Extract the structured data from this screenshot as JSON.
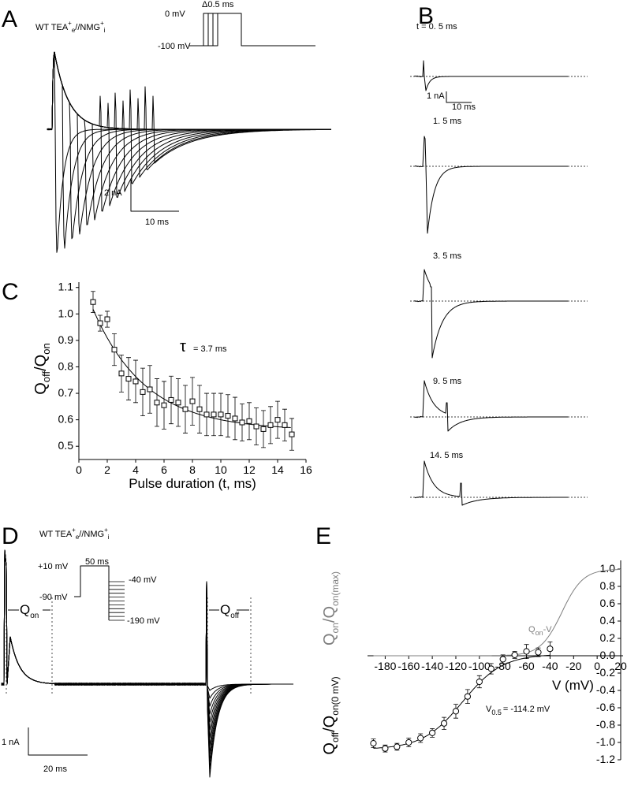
{
  "figure": {
    "panels": {
      "A": {
        "letter": "A",
        "title_main": "WT TEA",
        "title_sup1": "+",
        "title_sub1": "e",
        "title_mid": "//NMG",
        "title_sup2": "+",
        "title_sub2": "i",
        "protocol": {
          "step_label": "Δ0.5 ms",
          "high_label": "0 mV",
          "low_label": "-100 mV"
        },
        "scale_y": "2 nA",
        "scale_x": "10 ms"
      },
      "B": {
        "letter": "B",
        "trace_labels": [
          "t = 0. 5 ms",
          "1. 5 ms",
          "3. 5 ms",
          "9. 5 ms",
          "14. 5 ms"
        ],
        "scale_y": "1 nA",
        "scale_x": "10 ms"
      },
      "C": {
        "letter": "C",
        "ylabel_main": "Q",
        "ylabel_sub1": "off",
        "ylabel_mid": "/Q",
        "ylabel_sub2": "on",
        "xlabel": "Pulse duration (t, ms)",
        "tau_symbol": "τ",
        "tau_text": "= 3.7 ms"
      },
      "D": {
        "letter": "D",
        "title_main": "WT TEA",
        "title_sup1": "+",
        "title_sub1": "e",
        "title_mid": "//NMG",
        "title_sup2": "+",
        "title_sub2": "i",
        "protocol": {
          "duration": "50 ms",
          "prepulse": "+10 mV",
          "hold": "-90 mV",
          "top": "-40 mV",
          "bottom": "-190 mV"
        },
        "q_on_main": "Q",
        "q_on_sub": "on",
        "q_off_main": "Q",
        "q_off_sub": "off",
        "scale_y": "1 nA",
        "scale_x": "20 ms"
      },
      "E": {
        "letter": "E",
        "ylabel_top_main": "Q",
        "ylabel_top_sub1": "on",
        "ylabel_top_mid": "/Q",
        "ylabel_top_sub2": "on(max)",
        "ylabel_bot_main": "Q",
        "ylabel_bot_sub1": "off",
        "ylabel_bot_mid": "/Q",
        "ylabel_bot_sub2": "on(0 mV)",
        "xlabel": "V (mV)",
        "qon_label_main": "Q",
        "qon_label_sub": "on",
        "qon_label_suffix": "-V",
        "v05_main": "V",
        "v05_sub": "0.5",
        "v05_value": "= -114.2 mV"
      }
    }
  },
  "chart_data": [
    {
      "type": "scatter",
      "panel": "C",
      "x": [
        1,
        1.5,
        2,
        2.5,
        3,
        3.5,
        4,
        4.5,
        5,
        5.5,
        6,
        6.5,
        7,
        7.5,
        8,
        8.5,
        9,
        9.5,
        10,
        10.5,
        11,
        11.5,
        12,
        12.5,
        13,
        13.5,
        14,
        14.5,
        15
      ],
      "y": [
        1.045,
        0.965,
        0.98,
        0.865,
        0.775,
        0.755,
        0.745,
        0.705,
        0.715,
        0.665,
        0.655,
        0.675,
        0.665,
        0.64,
        0.67,
        0.64,
        0.62,
        0.62,
        0.62,
        0.615,
        0.605,
        0.59,
        0.595,
        0.575,
        0.565,
        0.58,
        0.6,
        0.58,
        0.545
      ],
      "err": [
        0.04,
        0.03,
        0.03,
        0.06,
        0.07,
        0.08,
        0.08,
        0.09,
        0.09,
        0.09,
        0.09,
        0.09,
        0.09,
        0.09,
        0.09,
        0.09,
        0.08,
        0.08,
        0.08,
        0.08,
        0.08,
        0.07,
        0.07,
        0.07,
        0.07,
        0.07,
        0.07,
        0.06,
        0.06
      ],
      "fit": {
        "model": "single exponential",
        "tau_ms": 3.7
      },
      "xlabel": "Pulse duration (t, ms)",
      "ylabel": "Qoff/Qon",
      "xlim": [
        0,
        16
      ],
      "ylim": [
        0.45,
        1.12
      ],
      "xticks": [
        0,
        2,
        4,
        6,
        8,
        10,
        12,
        14,
        16
      ],
      "yticks": [
        0.5,
        0.6,
        0.7,
        0.8,
        0.9,
        1.0,
        1.1
      ],
      "grid": false
    },
    {
      "type": "scatter",
      "panel": "E",
      "x": [
        -190,
        -180,
        -170,
        -160,
        -150,
        -140,
        -130,
        -120,
        -110,
        -100,
        -90,
        -80,
        -70,
        -60,
        -50,
        -40
      ],
      "y": [
        -1.01,
        -1.07,
        -1.05,
        -1.0,
        -0.95,
        -0.89,
        -0.78,
        -0.64,
        -0.47,
        -0.3,
        -0.15,
        -0.04,
        0.01,
        0.05,
        0.04,
        0.08
      ],
      "err": [
        0.05,
        0.04,
        0.04,
        0.05,
        0.05,
        0.05,
        0.07,
        0.08,
        0.08,
        0.07,
        0.06,
        0.05,
        0.04,
        0.08,
        0.05,
        0.08
      ],
      "series_labels": [
        "Qon-V",
        "Qoff/Qon(0 mV)"
      ],
      "fit": {
        "model": "Boltzmann",
        "v05_mV": -114.2
      },
      "xlabel": "V (mV)",
      "ylabel": "Qon/Qon(max) ; Qoff/Qon(0 mV)",
      "xlim": [
        -195,
        22
      ],
      "ylim": [
        -1.2,
        1.1
      ],
      "xticks": [
        -180,
        -160,
        -140,
        -120,
        -100,
        -80,
        -60,
        -40,
        -20,
        0,
        20
      ],
      "yticks": [
        -1.2,
        -1.0,
        -0.8,
        -0.6,
        -0.4,
        -0.2,
        0.0,
        0.2,
        0.4,
        0.6,
        0.8,
        1.0
      ],
      "grid": false
    }
  ]
}
